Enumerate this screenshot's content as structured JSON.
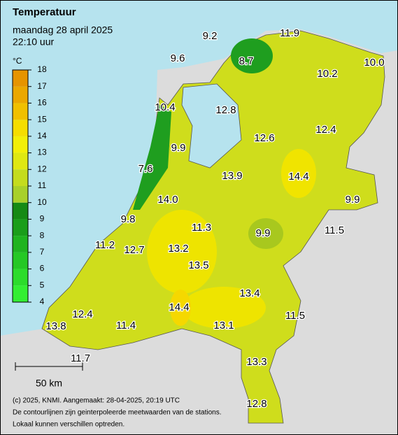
{
  "header": {
    "title": "Temperatuur",
    "date": "maandag 28 april 2025",
    "time": "22:10 uur"
  },
  "legend": {
    "unit": "°C",
    "ticks": [
      4,
      5,
      6,
      7,
      8,
      9,
      10,
      11,
      12,
      13,
      14,
      15,
      16,
      17,
      18
    ],
    "colors": [
      "#33ee33",
      "#2cdc2c",
      "#25c825",
      "#1fb41f",
      "#1a9e1a",
      "#158a15",
      "#a8d02a",
      "#c4dc1e",
      "#dfe812",
      "#f2ef08",
      "#f5de00",
      "#f0c000",
      "#eba800",
      "#e69400"
    ]
  },
  "stations": [
    "9.2",
    "11.9",
    "9.6",
    "8.7",
    "10.0",
    "10.2",
    "10.4",
    "12.8",
    "12.6",
    "12.4",
    "9.9",
    "7.6",
    "13.9",
    "14.4",
    "9.9",
    "14.0",
    "9.8",
    "11.3",
    "9.9",
    "11.5",
    "11.2",
    "12.7",
    "13.2",
    "13.5",
    "13.4",
    "14.4",
    "12.4",
    "11.5",
    "13.8",
    "11.4",
    "13.1",
    "11.7",
    "13.3",
    "12.8"
  ],
  "scale_bar": "50 km",
  "footer": [
    "(c) 2025, KNMI. Aangemaakt: 28-04-2025, 20:19 UTC",
    "De contourlijnen zijn geinterpoleerde meetwaarden van de stations.",
    "Lokaal kunnen verschillen optreden."
  ]
}
